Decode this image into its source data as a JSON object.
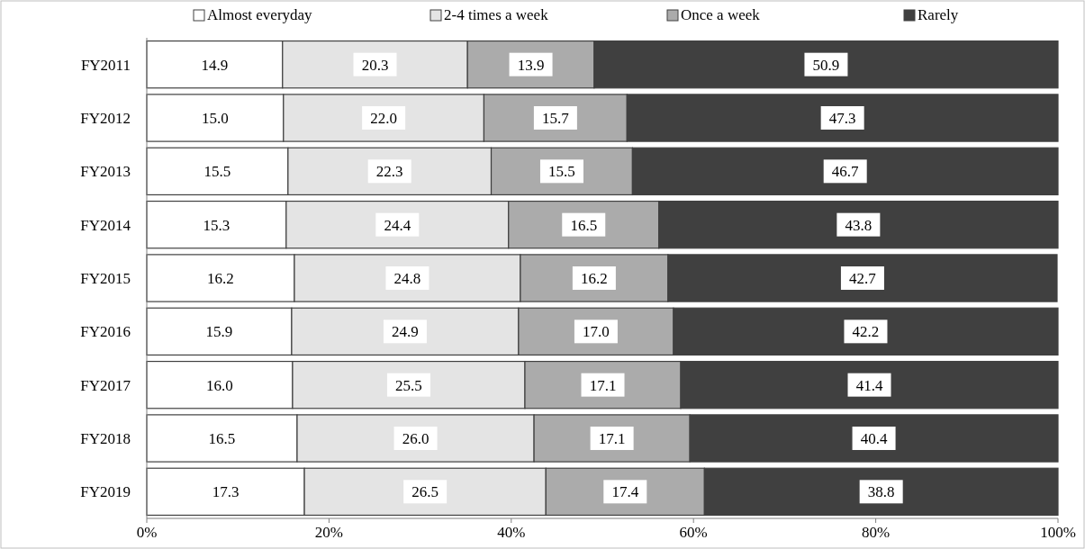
{
  "chart_data": {
    "type": "bar",
    "orientation": "horizontal",
    "stacked": true,
    "categories": [
      "FY2011",
      "FY2012",
      "FY2013",
      "FY2014",
      "FY2015",
      "FY2016",
      "FY2017",
      "FY2018",
      "FY2019"
    ],
    "series": [
      {
        "name": "Almost everyday",
        "color": "#ffffff",
        "values": [
          14.9,
          15.0,
          15.5,
          15.3,
          16.2,
          15.9,
          16.0,
          16.5,
          17.3
        ],
        "value_labels": [
          "14.9",
          "15.0",
          "15.5",
          "15.3",
          "16.2",
          "15.9",
          "16.0",
          "16.5",
          "17.3"
        ]
      },
      {
        "name": "2-4 times a week",
        "color": "#e4e4e4",
        "values": [
          20.3,
          22.0,
          22.3,
          24.4,
          24.8,
          24.9,
          25.5,
          26.0,
          26.5
        ],
        "value_labels": [
          "20.3",
          "22.0",
          "22.3",
          "24.4",
          "24.8",
          "24.9",
          "25.5",
          "26.0",
          "26.5"
        ]
      },
      {
        "name": "Once a week",
        "color": "#ababab",
        "values": [
          13.9,
          15.7,
          15.5,
          16.5,
          16.2,
          17.0,
          17.1,
          17.1,
          17.4
        ],
        "value_labels": [
          "13.9",
          "15.7",
          "15.5",
          "16.5",
          "16.2",
          "17.0",
          "17.1",
          "17.1",
          "17.4"
        ]
      },
      {
        "name": "Rarely",
        "color": "#404040",
        "values": [
          50.9,
          47.3,
          46.7,
          43.8,
          42.7,
          42.2,
          41.4,
          40.4,
          38.8
        ],
        "value_labels": [
          "50.9",
          "47.3",
          "46.7",
          "43.8",
          "42.7",
          "42.2",
          "41.4",
          "40.4",
          "38.8"
        ]
      }
    ],
    "xlim": [
      0,
      100
    ],
    "xticks": [
      {
        "value": 0,
        "label": "0%"
      },
      {
        "value": 20,
        "label": "20%"
      },
      {
        "value": 40,
        "label": "40%"
      },
      {
        "value": 60,
        "label": "60%"
      },
      {
        "value": 80,
        "label": "80%"
      },
      {
        "value": 100,
        "label": "100%"
      }
    ],
    "legend": "top",
    "grid": false
  }
}
